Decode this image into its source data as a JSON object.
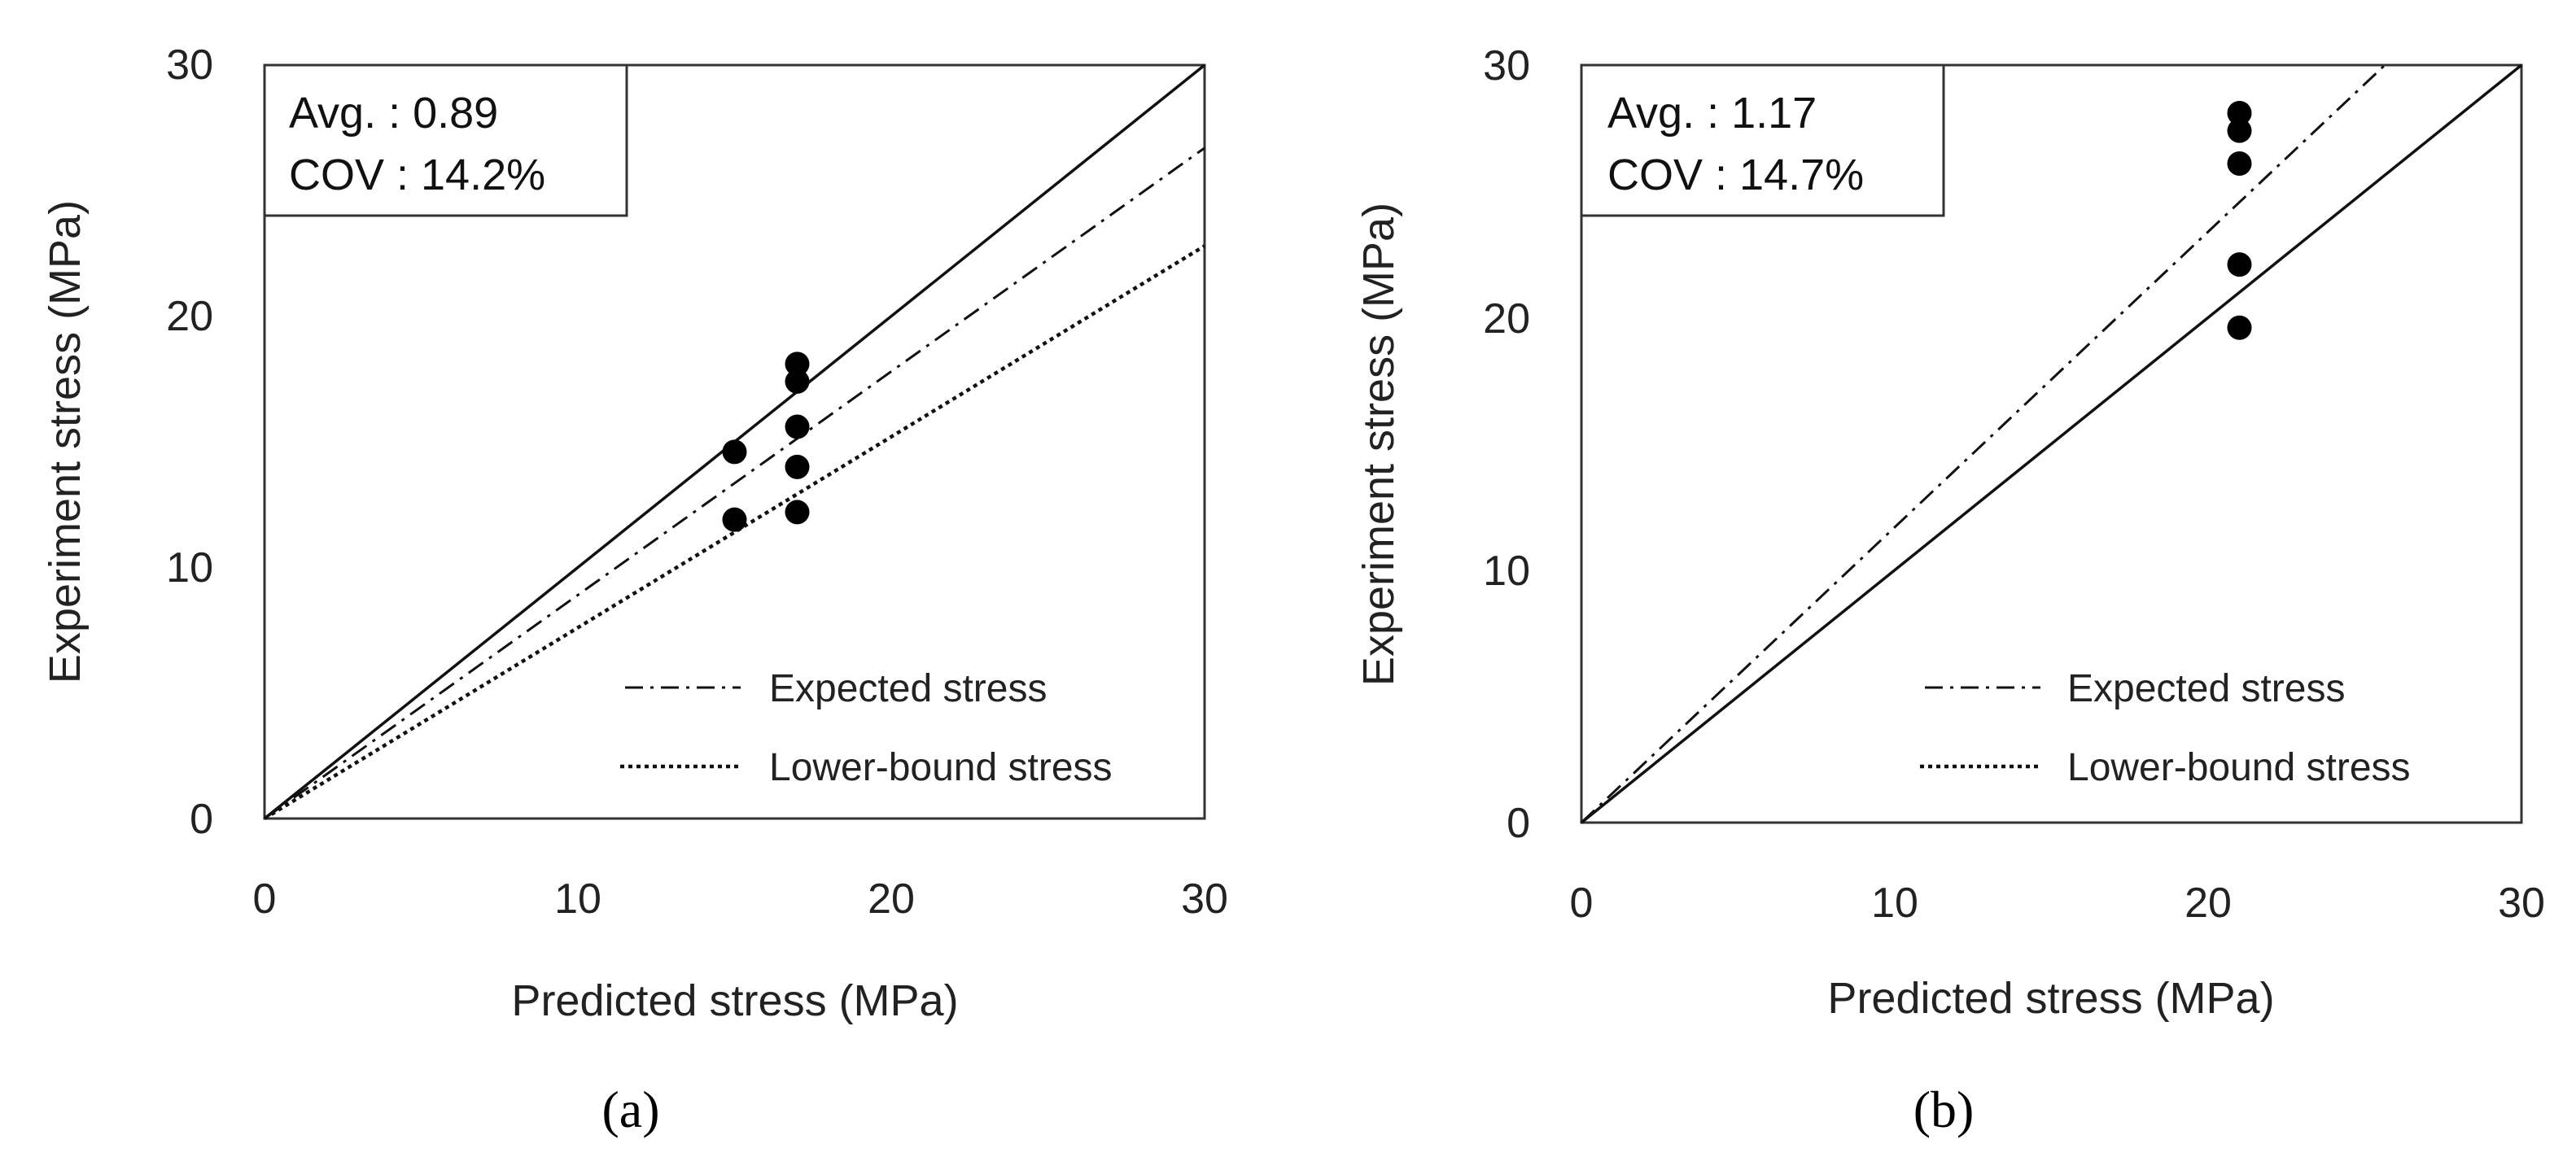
{
  "chart_data": [
    {
      "type": "scatter",
      "caption": "(a)",
      "xlabel": "Predicted stress (MPa)",
      "ylabel": "Experiment stress (MPa)",
      "xlim": [
        0,
        30
      ],
      "ylim": [
        0,
        30
      ],
      "xticks": [
        "0",
        "10",
        "20",
        "30"
      ],
      "yticks": [
        "0",
        "10",
        "20",
        "30"
      ],
      "grid": false,
      "annotation": {
        "avg_label": "Avg. : 0.89",
        "cov_label": "COV : 14.2%"
      },
      "reference_lines": [
        {
          "style": "solid",
          "slope": 1.0
        },
        {
          "name": "Expected stress",
          "style": "dashdot",
          "slope": 0.89
        },
        {
          "name": "Lower-bound stress",
          "style": "dotted",
          "slope": 0.76
        }
      ],
      "legend": {
        "position": "bottom-right",
        "entries": [
          {
            "label": "Expected stress",
            "style": "dashdot"
          },
          {
            "label": "Lower-bound stress",
            "style": "dotted"
          }
        ]
      },
      "points": [
        {
          "x": 15.0,
          "y": 14.6
        },
        {
          "x": 15.0,
          "y": 11.9
        },
        {
          "x": 17.0,
          "y": 18.1
        },
        {
          "x": 17.0,
          "y": 17.4
        },
        {
          "x": 17.0,
          "y": 15.6
        },
        {
          "x": 17.0,
          "y": 14.0
        },
        {
          "x": 17.0,
          "y": 12.2
        }
      ]
    },
    {
      "type": "scatter",
      "caption": "(b)",
      "xlabel": "Predicted stress (MPa)",
      "ylabel": "Experiment stress (MPa)",
      "xlim": [
        0,
        30
      ],
      "ylim": [
        0,
        30
      ],
      "xticks": [
        "0",
        "10",
        "20",
        "30"
      ],
      "yticks": [
        "0",
        "10",
        "20",
        "30"
      ],
      "grid": false,
      "annotation": {
        "avg_label": "Avg. : 1.17",
        "cov_label": "COV : 14.7%"
      },
      "reference_lines": [
        {
          "style": "solid",
          "slope": 1.0
        },
        {
          "name": "Expected stress",
          "style": "dashdot",
          "slope": 1.17
        }
      ],
      "legend": {
        "position": "bottom-right",
        "entries": [
          {
            "label": "Expected stress",
            "style": "dashdot"
          },
          {
            "label": "Lower-bound stress",
            "style": "dotted"
          }
        ]
      },
      "points": [
        {
          "x": 21.0,
          "y": 28.1
        },
        {
          "x": 21.0,
          "y": 27.4
        },
        {
          "x": 21.0,
          "y": 26.1
        },
        {
          "x": 21.0,
          "y": 22.1
        },
        {
          "x": 21.0,
          "y": 19.6
        }
      ]
    }
  ]
}
